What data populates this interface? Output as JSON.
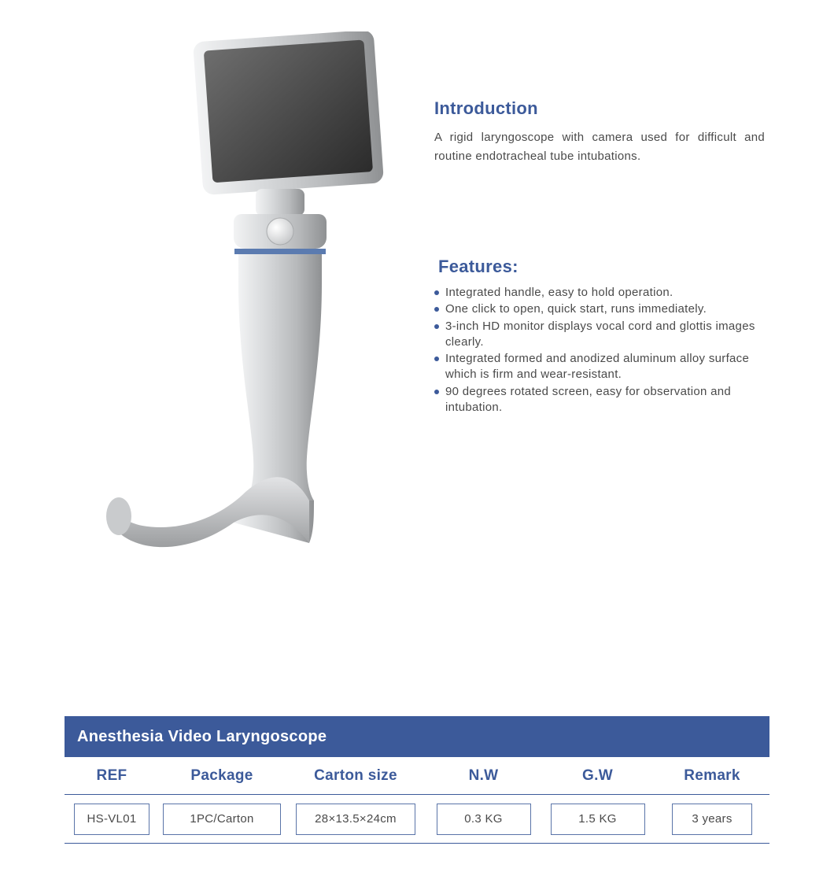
{
  "colors": {
    "accent": "#3c5a9a",
    "text": "#4a4a4a",
    "banner_bg": "#3c5a9a",
    "banner_text": "#ffffff",
    "cell_border": "#5a74a8",
    "rule": "#3c5a9a",
    "bullet": "#3c5a9a"
  },
  "intro": {
    "title": "Introduction",
    "body": "A rigid laryngoscope with camera used for difficult and routine endotracheal tube intubations."
  },
  "features": {
    "title": "Features:",
    "items": [
      "Integrated handle, easy to hold operation.",
      "One click to open, quick start, runs immediately.",
      "3-inch HD monitor displays vocal cord and glottis images clearly.",
      "Integrated formed and anodized aluminum alloy surface which is firm and wear-resistant.",
      "90 degrees rotated screen, easy for observation and intubation."
    ]
  },
  "spec_table": {
    "banner": "Anesthesia Video Laryngoscope",
    "headers": [
      "REF",
      "Package",
      "Carton size",
      "N.W",
      "G.W",
      "Remark"
    ],
    "row": [
      "HS-VL01",
      "1PC/Carton",
      "28×13.5×24cm",
      "0.3 KG",
      "1.5 KG",
      "3 years"
    ]
  },
  "product_svg": {
    "screen_fill_dark": "#3a3a3a",
    "screen_fill_light": "#6e6e6e",
    "body_light": "#e8e9ea",
    "body_mid": "#c7c9cb",
    "body_dark": "#9a9c9e",
    "ring_blue": "#5b7bb0",
    "button_light": "#f0f0f0"
  }
}
